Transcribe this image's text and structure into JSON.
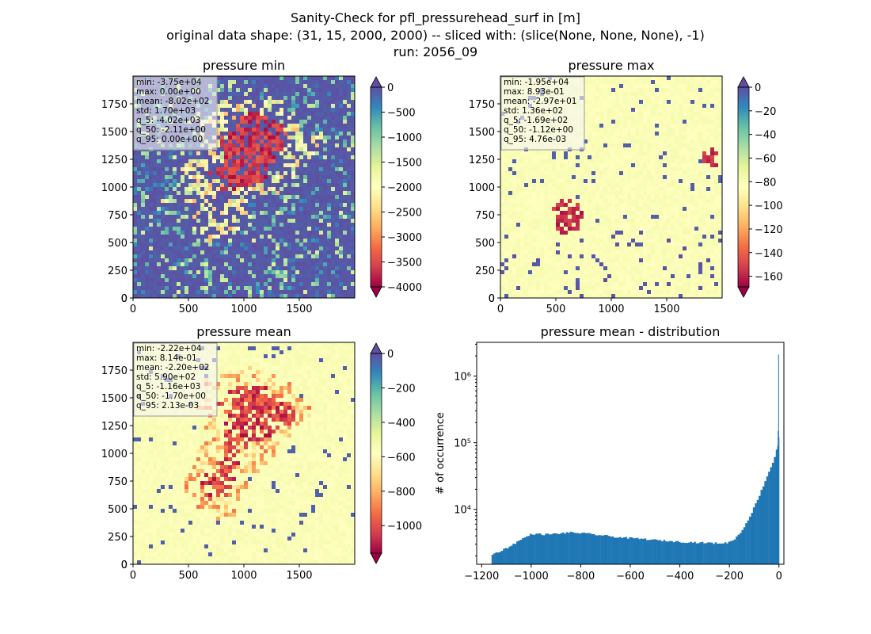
{
  "suptitle": {
    "line1": "Sanity-Check for pfl_pressurehead_surf in [m]",
    "line2": "original data shape: (31, 15, 2000, 2000) -- sliced with: (slice(None, None, None), -1)",
    "line3": "run: 2056_09"
  },
  "colors": {
    "spectral": [
      "#9e0142",
      "#d53e4f",
      "#f46d43",
      "#fdae61",
      "#fee08b",
      "#ffffbf",
      "#e6f598",
      "#abdda4",
      "#66c2a5",
      "#3288bd",
      "#5e4fa2"
    ],
    "hist_bar": "#1f77b4",
    "stats_box": "#f5f5f5"
  },
  "chart_data": [
    {
      "type": "heatmap",
      "title": "pressure min",
      "colormap": "Spectral",
      "xlim": [
        0,
        2000
      ],
      "ylim": [
        0,
        2000
      ],
      "xticks": [
        0,
        500,
        1000,
        1500
      ],
      "yticks": [
        0,
        250,
        500,
        750,
        1000,
        1250,
        1500,
        1750
      ],
      "colorbar": {
        "min": -4000,
        "max": 0,
        "ticks": [
          0,
          -500,
          -1000,
          -1500,
          -2000,
          -2500,
          -3000,
          -3500,
          -4000
        ],
        "extend": "both"
      },
      "stats": [
        "min: -3.75e+04",
        "max: 0.00e+00",
        "mean: -8.02e+02",
        "std: 1.70e+03",
        "q_5: -4.02e+03",
        "q_50: -2.11e+00",
        "q_95: 0.00e+00"
      ]
    },
    {
      "type": "heatmap",
      "title": "pressure max",
      "colormap": "Spectral",
      "xlim": [
        0,
        2000
      ],
      "ylim": [
        0,
        2000
      ],
      "xticks": [
        0,
        500,
        1000,
        1500
      ],
      "yticks": [
        0,
        250,
        500,
        750,
        1000,
        1250,
        1500,
        1750
      ],
      "colorbar": {
        "min": -169,
        "max": 0,
        "ticks": [
          0,
          -20,
          -40,
          -60,
          -80,
          -100,
          -120,
          -140,
          -160
        ],
        "extend": "both"
      },
      "stats": [
        "min: -1.95e+04",
        "max: 8.93e-01",
        "mean: -2.97e+01",
        "std: 1.36e+02",
        "q_5: -1.69e+02",
        "q_50: -1.12e+00",
        "q_95: 4.76e-03"
      ]
    },
    {
      "type": "heatmap",
      "title": "pressure mean",
      "colormap": "Spectral",
      "xlim": [
        0,
        2000
      ],
      "ylim": [
        0,
        2000
      ],
      "xticks": [
        0,
        500,
        1000,
        1500
      ],
      "yticks": [
        0,
        250,
        500,
        750,
        1000,
        1250,
        1500,
        1750
      ],
      "colorbar": {
        "min": -1160,
        "max": 0,
        "ticks": [
          0,
          -200,
          -400,
          -600,
          -800,
          -1000
        ],
        "extend": "both"
      },
      "stats": [
        "min: -2.22e+04",
        "max: 8.14e-01",
        "mean: -2.20e+02",
        "std: 5.90e+02",
        "q_5: -1.16e+03",
        "q_50: -1.70e+00",
        "q_95: 2.13e-03"
      ]
    },
    {
      "type": "bar",
      "title": "pressure mean - distribution",
      "xlabel": "",
      "ylabel": "# of occurrence",
      "xlim": [
        -1220,
        20
      ],
      "ylim": [
        1500,
        3200000
      ],
      "yscale": "log",
      "xticks": [
        -1200,
        -1000,
        -800,
        -600,
        -400,
        -200,
        0
      ],
      "yticks": [
        10000,
        100000,
        1000000
      ],
      "ytick_labels": [
        "10⁴",
        "10⁵",
        "10⁶"
      ],
      "bin_width": 7.7,
      "bins": [
        [
          -1160,
          2100
        ],
        [
          -1100,
          2650
        ],
        [
          -1040,
          3600
        ],
        [
          -1000,
          4300
        ],
        [
          -950,
          4200
        ],
        [
          -900,
          4300
        ],
        [
          -850,
          4500
        ],
        [
          -800,
          4400
        ],
        [
          -750,
          4200
        ],
        [
          -700,
          4000
        ],
        [
          -650,
          3800
        ],
        [
          -600,
          3700
        ],
        [
          -550,
          3600
        ],
        [
          -500,
          3450
        ],
        [
          -450,
          3350
        ],
        [
          -400,
          3250
        ],
        [
          -350,
          3200
        ],
        [
          -300,
          3150
        ],
        [
          -250,
          3100
        ],
        [
          -210,
          3150
        ],
        [
          -200,
          3300
        ],
        [
          -190,
          3450
        ],
        [
          -180,
          3700
        ],
        [
          -170,
          4000
        ],
        [
          -160,
          4400
        ],
        [
          -150,
          5000
        ],
        [
          -140,
          5800
        ],
        [
          -130,
          6800
        ],
        [
          -120,
          8000
        ],
        [
          -110,
          9500
        ],
        [
          -100,
          11500
        ],
        [
          -90,
          14000
        ],
        [
          -80,
          17000
        ],
        [
          -70,
          21000
        ],
        [
          -60,
          26000
        ],
        [
          -50,
          32000
        ],
        [
          -40,
          40000
        ],
        [
          -30,
          48000
        ],
        [
          -20,
          62000
        ],
        [
          -12,
          80000
        ],
        [
          -8,
          150000
        ],
        [
          -4,
          2100000
        ],
        [
          0,
          120000
        ]
      ]
    }
  ]
}
